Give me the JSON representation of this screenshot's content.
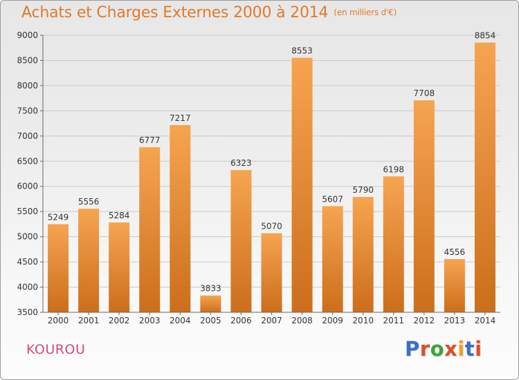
{
  "header": {
    "title": "Achats et Charges Externes 2000 à 2014",
    "subtitle": "(en milliers d'€)"
  },
  "footer": {
    "city": "KOUROU",
    "logo_text": "Proxiti",
    "logo_colors": [
      "#3a6fc4",
      "#e04b2a",
      "#3aa53a",
      "#e04b2a",
      "#f0a020",
      "#3a6fc4",
      "#e04b2a"
    ]
  },
  "colors": {
    "bar_light": "#f6a450",
    "bar_dark": "#cc6e1c",
    "title": "#e07a2b",
    "city": "#d04a7c"
  },
  "chart_data": {
    "type": "bar",
    "title": "Achats et Charges Externes 2000 à 2014",
    "subtitle": "(en milliers d'€)",
    "categories": [
      "2000",
      "2001",
      "2002",
      "2003",
      "2004",
      "2005",
      "2006",
      "2007",
      "2008",
      "2009",
      "2010",
      "2011",
      "2012",
      "2013",
      "2014"
    ],
    "values": [
      5249,
      5556,
      5284,
      6777,
      7217,
      3833,
      6323,
      5070,
      8553,
      5607,
      5790,
      6198,
      7708,
      4556,
      8854
    ],
    "ylim": [
      3500,
      9000
    ],
    "yticks": [
      3500,
      4000,
      4500,
      5000,
      5500,
      6000,
      6500,
      7000,
      7500,
      8000,
      8500,
      9000
    ],
    "grid": true,
    "legend": "none",
    "xlabel": "",
    "ylabel": ""
  }
}
